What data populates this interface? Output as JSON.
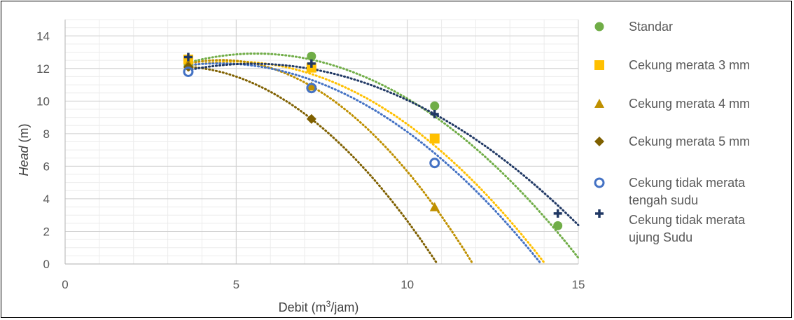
{
  "chart_data": {
    "type": "scatter",
    "title": "",
    "xlabel_main": "Debit (m",
    "xlabel_sup": "3",
    "xlabel_tail": "/jam)",
    "ylabel_italic": "Head",
    "ylabel_tail": " (m)",
    "xlim": [
      0,
      15
    ],
    "ylim": [
      0,
      15
    ],
    "x_ticks": [
      0,
      5,
      10,
      15
    ],
    "y_ticks": [
      0,
      2,
      4,
      6,
      8,
      10,
      12,
      14
    ],
    "grid": true,
    "legend_position": "right",
    "trendline": "polynomial-dotted",
    "series": [
      {
        "name": "Standar",
        "marker": "circle",
        "color": "#70AD47",
        "x": [
          3.6,
          7.2,
          10.8,
          14.4
        ],
        "y": [
          12.2,
          12.75,
          9.7,
          2.35
        ],
        "trend": [
          -0.1412,
          1.5752,
          8.52
        ]
      },
      {
        "name": "Cekung merata 3 mm",
        "marker": "square",
        "color": "#FFC000",
        "x": [
          3.6,
          7.2,
          10.8
        ],
        "y": [
          12.55,
          12.05,
          7.7
        ],
        "trend": [
          -0.1505,
          1.4884,
          8.7432
        ]
      },
      {
        "name": "Cekung merata 4 mm",
        "marker": "triangle",
        "color": "#BF9000",
        "x": [
          3.6,
          7.2,
          10.8
        ],
        "y": [
          12.3,
          10.9,
          3.5
        ],
        "trend": [
          -0.2315,
          2.1142,
          7.6886
        ]
      },
      {
        "name": "Cekung merata 5 mm",
        "marker": "diamond",
        "color": "#7F6000",
        "x": [
          3.6,
          7.2
        ],
        "y": [
          12.1,
          8.9
        ],
        "trend": [
          -0.21,
          1.378,
          9.862
        ]
      },
      {
        "name_line1": "Cekung tidak merata",
        "name_line2": "tengah sudu",
        "marker": "circle-open",
        "color": "#4472C4",
        "x": [
          3.6,
          7.2,
          10.8
        ],
        "y": [
          11.8,
          10.8,
          6.2
        ],
        "trend": [
          -0.1389,
          1.25,
          9.5
        ]
      },
      {
        "name_line1": "Cekung tidak merata",
        "name_line2": "ujung Sudu",
        "marker": "plus",
        "color": "#203864",
        "x": [
          3.6,
          7.2,
          10.8,
          14.4
        ],
        "y": [
          12.7,
          12.3,
          9.2,
          3.1
        ],
        "trend": [
          -0.1094,
          1.2,
          9.0
        ]
      }
    ]
  }
}
